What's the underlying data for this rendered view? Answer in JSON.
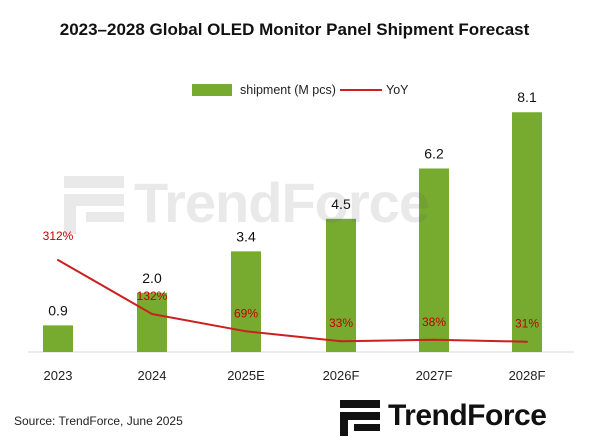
{
  "title": "2023–2028 Global OLED Monitor Panel Shipment Forecast",
  "source": "Source: TrendForce, June 2025",
  "watermark_text": "TrendForce",
  "logo_text": "TrendForce",
  "colors": {
    "bar": "#77ab2f",
    "line": "#cc1f1f",
    "yoy_text": "#c00000"
  },
  "chart_data": {
    "type": "bar",
    "categories": [
      "2023",
      "2024",
      "2025E",
      "2026F",
      "2027F",
      "2028F"
    ],
    "series": [
      {
        "name": "shipment (M pcs)",
        "type": "bar",
        "values": [
          0.9,
          2.0,
          3.4,
          4.5,
          6.2,
          8.1
        ],
        "labels": [
          "0.9",
          "2.0",
          "3.4",
          "4.5",
          "6.2",
          "8.1"
        ]
      },
      {
        "name": "YoY",
        "type": "line",
        "values": [
          312,
          132,
          69,
          33,
          38,
          31
        ],
        "labels": [
          "312%",
          "132%",
          "69%",
          "33%",
          "38%",
          "31%"
        ]
      }
    ],
    "legend_position": "top-center",
    "grid": false
  }
}
